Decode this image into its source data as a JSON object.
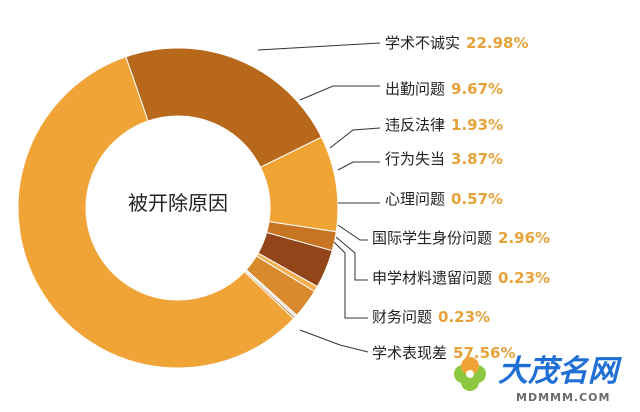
{
  "chart_data": {
    "type": "pie",
    "center_label": "被开除原因",
    "slices": [
      {
        "label": "学术不诚实",
        "value_text": "22.98%",
        "value": 22.98,
        "color": "#b7681a"
      },
      {
        "label": "出勤问题",
        "value_text": "9.67%",
        "value": 9.67,
        "color": "#f0a433"
      },
      {
        "label": "违反法律",
        "value_text": "1.93%",
        "value": 1.93,
        "color": "#c87523"
      },
      {
        "label": "行为失当",
        "value_text": "3.87%",
        "value": 3.87,
        "color": "#93451a"
      },
      {
        "label": "心理问题",
        "value_text": "0.57%",
        "value": 0.57,
        "color": "#f2b050"
      },
      {
        "label": "国际学生身份问题",
        "value_text": "2.96%",
        "value": 2.96,
        "color": "#d88a2c"
      },
      {
        "label": "申学材料遗留问题",
        "value_text": "0.23%",
        "value": 0.23,
        "color": "#dcdcdc"
      },
      {
        "label": "财务问题",
        "value_text": "0.23%",
        "value": 0.23,
        "color": "#c98a4a"
      },
      {
        "label": "学术表现差",
        "value_text": "57.56%",
        "value": 57.56,
        "color": "#f0a437"
      }
    ]
  },
  "watermark": {
    "name": "大茂名网",
    "url": "MDMMM.COM"
  }
}
